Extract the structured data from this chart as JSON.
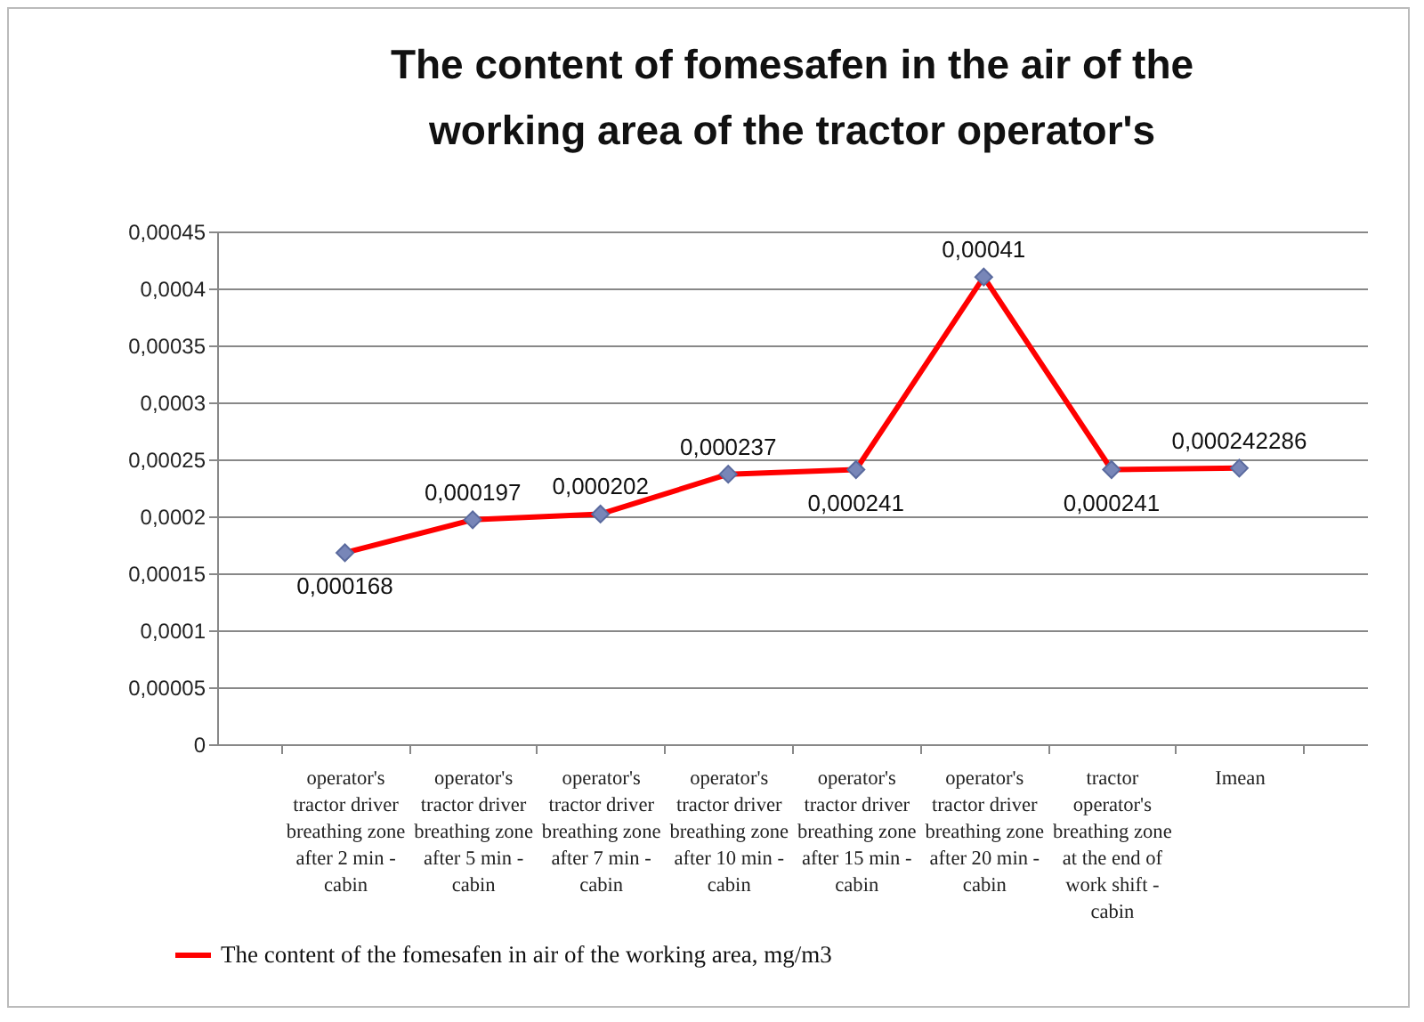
{
  "chart_data": {
    "type": "line",
    "title": "The content of fomesafen in the air of the working area of the tractor operator's",
    "categories": [
      "operator's tractor driver breathing zone after 2 min - cabin",
      "operator's tractor driver breathing zone after 5 min - cabin",
      "operator's tractor driver breathing zone after 7 min - cabin",
      "operator's tractor driver breathing zone after 10 min - cabin",
      "operator's tractor driver breathing zone after 15 min - cabin",
      "operator's tractor driver breathing zone after 20 min - cabin",
      "tractor operator's breathing zone at the end of work shift - cabin",
      "Imean"
    ],
    "series": [
      {
        "name": "The content of the fomesafen in air of the working area, mg/m3",
        "color": "#ff0000",
        "values": [
          0.000168,
          0.000197,
          0.000202,
          0.000237,
          0.000241,
          0.00041,
          0.000241,
          0.000242286
        ],
        "value_labels": [
          "0,000168",
          "0,000197",
          "0,000202",
          "0,000237",
          "0,000241",
          "0,00041",
          "0,000241",
          "0,000242286"
        ]
      }
    ],
    "ylim": [
      0,
      0.00045
    ],
    "yticks": [
      0,
      {
        "value": 5e-05,
        "label": "0,00005"
      },
      {
        "value": 0.0001,
        "label": "0,0001"
      },
      {
        "value": 0.00015,
        "label": "0,00015"
      },
      {
        "value": 0.0002,
        "label": "0,0002"
      },
      {
        "value": 0.00025,
        "label": "0,00025"
      },
      {
        "value": 0.0003,
        "label": "0,0003"
      },
      {
        "value": 0.00035,
        "label": "0,00035"
      },
      {
        "value": 0.0004,
        "label": "0,0004"
      },
      {
        "value": 0.00045,
        "label": "0,00045"
      }
    ],
    "grid": "y",
    "legend": "bottom",
    "marker": "diamond",
    "line_style": "solid"
  }
}
